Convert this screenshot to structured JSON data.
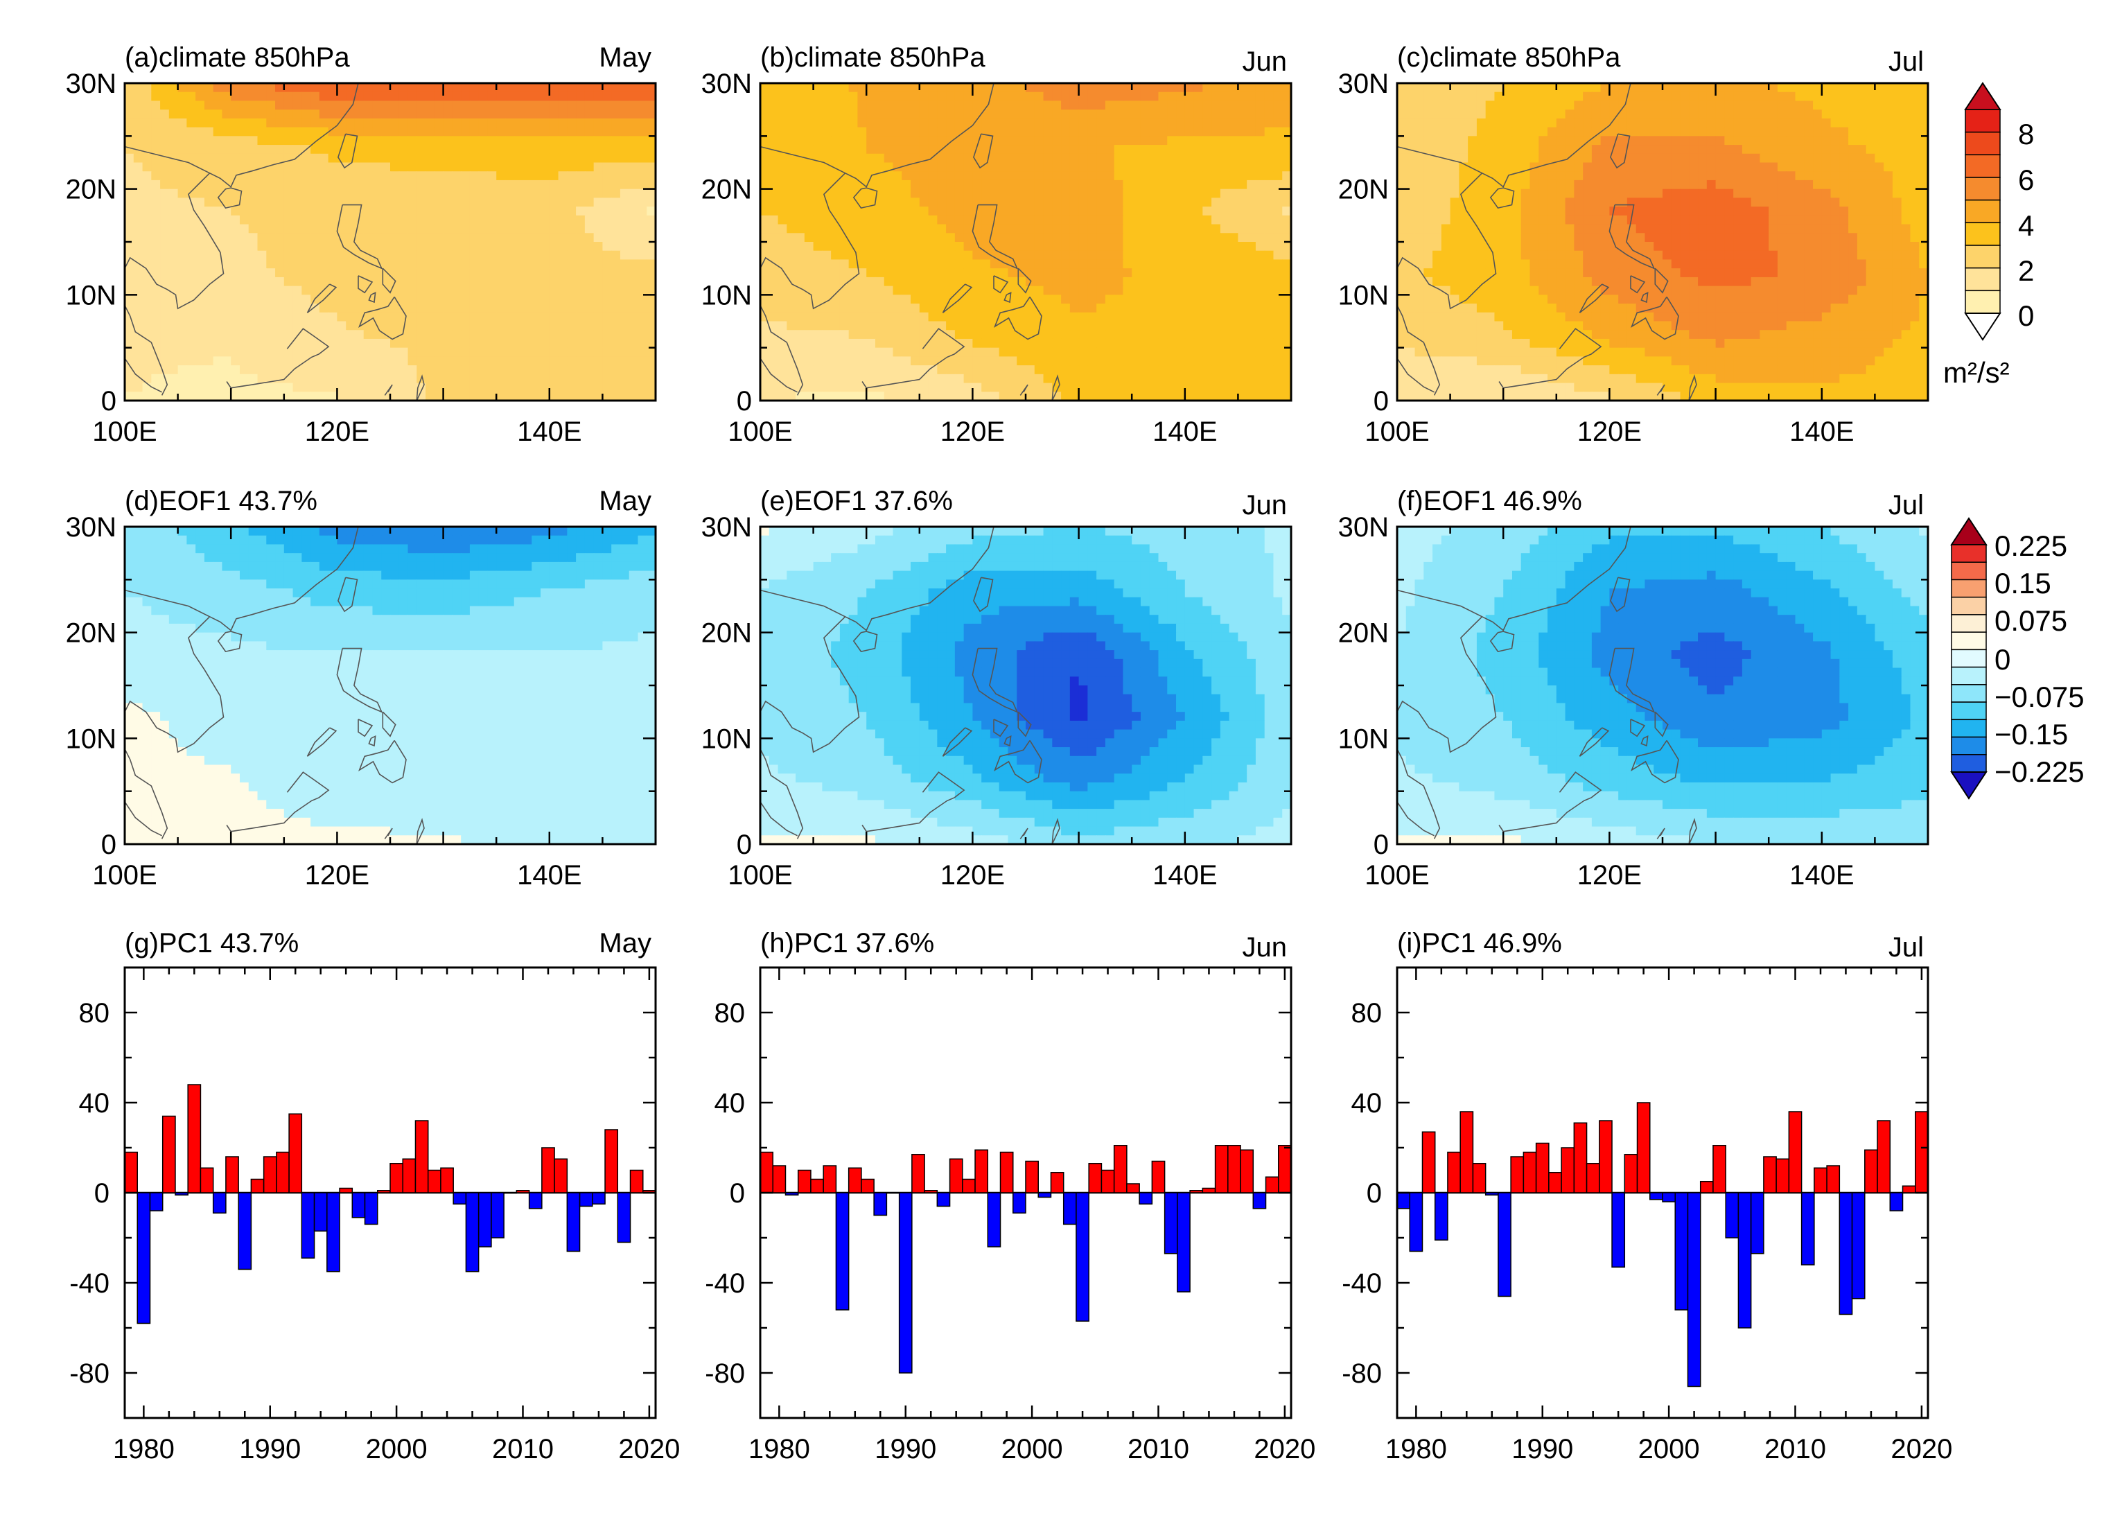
{
  "figure": {
    "xtick_labels_map": [
      "100E",
      "120E",
      "140E"
    ],
    "ytick_labels_map": [
      "0",
      "10N",
      "20N",
      "30N"
    ],
    "xtick_labels_pc": [
      "1980",
      "1990",
      "2000",
      "2010",
      "2020"
    ],
    "ytick_labels_pc": [
      "-80",
      "-40",
      "0",
      "40",
      "80"
    ]
  },
  "colorbars": {
    "climate": {
      "labels": [
        "0",
        "2",
        "4",
        "6",
        "8"
      ],
      "unit": "m²/s²",
      "colors": [
        "#fff5cc",
        "#fff0b0",
        "#ffe39a",
        "#fdd36a",
        "#fcc21c",
        "#f9a825",
        "#f58b2e",
        "#f36a25",
        "#ed4a1c",
        "#e52217",
        "#c80f1e"
      ]
    },
    "eof": {
      "labels": [
        "0.225",
        "0.15",
        "0.075",
        "0",
        "−0.075",
        "−0.15",
        "−0.225"
      ],
      "colors": [
        "#c8001e",
        "#e8302a",
        "#f46a4a",
        "#f8a070",
        "#fbd1a6",
        "#fdf0d6",
        "#fffbe6",
        "#e2fbff",
        "#b8f2fc",
        "#8ee6fa",
        "#4fd3f5",
        "#21b4f0",
        "#1e8ce8",
        "#1f5ee0",
        "#1b2ed6"
      ]
    }
  },
  "panels": [
    {
      "label": "(a)climate  850hPa",
      "month": "May"
    },
    {
      "label": "(b)climate  850hPa",
      "month": "Jun"
    },
    {
      "label": "(c)climate  850hPa",
      "month": "Jul"
    },
    {
      "label": "(d)EOF1  43.7%",
      "month": "May"
    },
    {
      "label": "(e)EOF1  37.6%",
      "month": "Jun"
    },
    {
      "label": "(f)EOF1  46.9%",
      "month": "Jul"
    },
    {
      "label": "(g)PC1  43.7%",
      "month": "May"
    },
    {
      "label": "(h)PC1  37.6%",
      "month": "Jun"
    },
    {
      "label": "(i)PC1  46.9%",
      "month": "Jul"
    }
  ],
  "chart_data": [
    {
      "type": "heatmap",
      "title": "(a)climate  850hPa",
      "month": "May",
      "xlim": [
        100,
        150
      ],
      "ylim": [
        0,
        30
      ],
      "levels": [
        0,
        1,
        2,
        3,
        4,
        5,
        6,
        7,
        8
      ],
      "grid_x": [
        100,
        110,
        120,
        130,
        140,
        150
      ],
      "grid_y": [
        0,
        6,
        12,
        18,
        24,
        30
      ],
      "values": [
        [
          1.0,
          0.8,
          0.9,
          2.2,
          2.2,
          2.2
        ],
        [
          1.1,
          1.1,
          1.9,
          2.2,
          2.2,
          2.3
        ],
        [
          1.4,
          1.8,
          2.3,
          2.3,
          2.3,
          2.2
        ],
        [
          1.8,
          2.0,
          2.3,
          2.4,
          2.4,
          0.9
        ],
        [
          2.0,
          2.5,
          3.2,
          3.4,
          3.6,
          3.6
        ],
        [
          2.4,
          5.6,
          7.0,
          7.2,
          7.1,
          7.0
        ]
      ]
    },
    {
      "type": "heatmap",
      "title": "(b)climate  850hPa",
      "month": "Jun",
      "xlim": [
        100,
        150
      ],
      "ylim": [
        0,
        30
      ],
      "levels": [
        0,
        1,
        2,
        3,
        4,
        5,
        6,
        7,
        8
      ],
      "grid_x": [
        100,
        110,
        120,
        130,
        140,
        150
      ],
      "grid_y": [
        0,
        6,
        12,
        18,
        24,
        30
      ],
      "values": [
        [
          1.0,
          0.8,
          1.5,
          3.2,
          3.6,
          3.6
        ],
        [
          1.8,
          2.0,
          3.2,
          3.9,
          3.8,
          3.6
        ],
        [
          2.5,
          3.0,
          3.9,
          4.2,
          3.8,
          3.3
        ],
        [
          3.0,
          3.6,
          4.3,
          4.5,
          3.2,
          1.9
        ],
        [
          3.4,
          4.0,
          4.5,
          4.1,
          3.8,
          3.8
        ],
        [
          3.4,
          4.1,
          4.5,
          5.6,
          5.2,
          4.5
        ]
      ]
    },
    {
      "type": "heatmap",
      "title": "(c)climate  850hPa",
      "month": "Jul",
      "xlim": [
        100,
        150
      ],
      "ylim": [
        0,
        30
      ],
      "levels": [
        0,
        1,
        2,
        3,
        4,
        5,
        6,
        7,
        8
      ],
      "grid_x": [
        100,
        110,
        120,
        130,
        140,
        150
      ],
      "grid_y": [
        0,
        6,
        12,
        18,
        24,
        30
      ],
      "values": [
        [
          1.0,
          0.9,
          1.8,
          3.4,
          3.8,
          3.6
        ],
        [
          2.2,
          2.8,
          4.2,
          5.2,
          4.6,
          3.8
        ],
        [
          2.8,
          3.6,
          5.4,
          6.3,
          5.8,
          4.0
        ],
        [
          2.4,
          3.6,
          6.0,
          6.6,
          5.4,
          3.5
        ],
        [
          2.2,
          3.4,
          5.2,
          5.2,
          4.2,
          3.6
        ],
        [
          2.0,
          3.0,
          4.0,
          4.2,
          3.8,
          3.6
        ]
      ]
    },
    {
      "type": "heatmap",
      "title": "(d)EOF1  43.7%",
      "month": "May",
      "xlim": [
        100,
        150
      ],
      "ylim": [
        0,
        30
      ],
      "levels": [
        -0.225,
        -0.15,
        -0.075,
        0,
        0.075,
        0.15,
        0.225
      ],
      "grid_x": [
        100,
        110,
        120,
        130,
        140,
        150
      ],
      "grid_y": [
        0,
        6,
        12,
        18,
        24,
        30
      ],
      "values": [
        [
          0.005,
          0.005,
          0.004,
          0.003,
          -0.01,
          -0.02
        ],
        [
          0.004,
          0.002,
          -0.012,
          -0.015,
          -0.015,
          -0.015
        ],
        [
          0.006,
          -0.01,
          -0.015,
          -0.02,
          -0.02,
          -0.02
        ],
        [
          -0.015,
          -0.02,
          -0.025,
          -0.025,
          -0.025,
          -0.02
        ],
        [
          -0.025,
          -0.04,
          -0.06,
          -0.065,
          -0.05,
          -0.035
        ],
        [
          -0.035,
          -0.07,
          -0.11,
          -0.125,
          -0.11,
          -0.08
        ]
      ]
    },
    {
      "type": "heatmap",
      "title": "(e)EOF1  37.6%",
      "month": "Jun",
      "xlim": [
        100,
        150
      ],
      "ylim": [
        0,
        30
      ],
      "levels": [
        -0.225,
        -0.15,
        -0.075,
        0,
        0.075,
        0.15,
        0.225
      ],
      "grid_x": [
        100,
        110,
        120,
        130,
        140,
        150
      ],
      "grid_y": [
        0,
        6,
        12,
        18,
        24,
        30
      ],
      "values": [
        [
          0.004,
          0.005,
          -0.012,
          -0.04,
          -0.03,
          -0.015
        ],
        [
          -0.02,
          -0.035,
          -0.07,
          -0.11,
          -0.075,
          -0.03
        ],
        [
          -0.03,
          -0.05,
          -0.1,
          -0.155,
          -0.1,
          -0.035
        ],
        [
          -0.03,
          -0.06,
          -0.11,
          -0.15,
          -0.08,
          -0.03
        ],
        [
          -0.025,
          -0.05,
          -0.09,
          -0.09,
          -0.05,
          -0.02
        ],
        [
          0.004,
          -0.015,
          -0.04,
          -0.05,
          -0.04,
          -0.02
        ]
      ]
    },
    {
      "type": "heatmap",
      "title": "(f)EOF1  46.9%",
      "month": "Jul",
      "xlim": [
        100,
        150
      ],
      "ylim": [
        0,
        30
      ],
      "levels": [
        -0.225,
        -0.15,
        -0.075,
        0,
        0.075,
        0.15,
        0.225
      ],
      "grid_x": [
        100,
        110,
        120,
        130,
        140,
        150
      ],
      "grid_y": [
        0,
        6,
        12,
        18,
        24,
        30
      ],
      "values": [
        [
          0.004,
          0.005,
          -0.01,
          -0.025,
          -0.03,
          -0.025
        ],
        [
          -0.02,
          -0.035,
          -0.06,
          -0.08,
          -0.075,
          -0.06
        ],
        [
          -0.03,
          -0.05,
          -0.09,
          -0.12,
          -0.11,
          -0.07
        ],
        [
          -0.025,
          -0.06,
          -0.11,
          -0.135,
          -0.105,
          -0.06
        ],
        [
          -0.02,
          -0.05,
          -0.1,
          -0.11,
          -0.08,
          -0.04
        ],
        [
          -0.015,
          -0.035,
          -0.07,
          -0.07,
          -0.05,
          -0.02
        ]
      ]
    },
    {
      "type": "bar",
      "title": "(g)PC1  43.7%",
      "month": "May",
      "x": [
        1979,
        1980,
        1981,
        1982,
        1983,
        1984,
        1985,
        1986,
        1987,
        1988,
        1989,
        1990,
        1991,
        1992,
        1993,
        1994,
        1995,
        1996,
        1997,
        1998,
        1999,
        2000,
        2001,
        2002,
        2003,
        2004,
        2005,
        2006,
        2007,
        2008,
        2009,
        2010,
        2011,
        2012,
        2013,
        2014,
        2015,
        2016,
        2017,
        2018,
        2019,
        2020
      ],
      "values": [
        18,
        -58,
        -8,
        34,
        -1,
        48,
        11,
        -9,
        16,
        -34,
        6,
        16,
        18,
        35,
        -29,
        -17,
        -35,
        2,
        -11,
        -14,
        1,
        13,
        15,
        32,
        10,
        11,
        -5,
        -35,
        -24,
        -20,
        0,
        1,
        -7,
        20,
        15,
        -26,
        -6,
        -5,
        28,
        -22,
        10,
        1
      ],
      "xlim": [
        1978.5,
        2020.5
      ],
      "ylim": [
        -100,
        100
      ],
      "xlabel": "",
      "ylabel": ""
    },
    {
      "type": "bar",
      "title": "(h)PC1  37.6%",
      "month": "Jun",
      "x": [
        1979,
        1980,
        1981,
        1982,
        1983,
        1984,
        1985,
        1986,
        1987,
        1988,
        1989,
        1990,
        1991,
        1992,
        1993,
        1994,
        1995,
        1996,
        1997,
        1998,
        1999,
        2000,
        2001,
        2002,
        2003,
        2004,
        2005,
        2006,
        2007,
        2008,
        2009,
        2010,
        2011,
        2012,
        2013,
        2014,
        2015,
        2016,
        2017,
        2018,
        2019,
        2020
      ],
      "values": [
        18,
        12,
        -1,
        10,
        6,
        12,
        -52,
        11,
        6,
        -10,
        0,
        -80,
        17,
        1,
        -6,
        15,
        6,
        19,
        -24,
        18,
        -9,
        14,
        -2,
        9,
        -14,
        -57,
        13,
        10,
        21,
        4,
        -5,
        14,
        -27,
        -44,
        1,
        2,
        21,
        21,
        19,
        -7,
        7,
        21
      ],
      "xlim": [
        1978.5,
        2020.5
      ],
      "ylim": [
        -100,
        100
      ],
      "xlabel": "",
      "ylabel": ""
    },
    {
      "type": "bar",
      "title": "(i)PC1  46.9%",
      "month": "Jul",
      "x": [
        1979,
        1980,
        1981,
        1982,
        1983,
        1984,
        1985,
        1986,
        1987,
        1988,
        1989,
        1990,
        1991,
        1992,
        1993,
        1994,
        1995,
        1996,
        1997,
        1998,
        1999,
        2000,
        2001,
        2002,
        2003,
        2004,
        2005,
        2006,
        2007,
        2008,
        2009,
        2010,
        2011,
        2012,
        2013,
        2014,
        2015,
        2016,
        2017,
        2018,
        2019,
        2020
      ],
      "values": [
        -7,
        -26,
        27,
        -21,
        18,
        36,
        13,
        -1,
        -46,
        16,
        18,
        22,
        9,
        20,
        31,
        13,
        32,
        -33,
        17,
        40,
        -3,
        -4,
        -52,
        -86,
        5,
        21,
        -20,
        -60,
        -27,
        16,
        15,
        36,
        -32,
        11,
        12,
        -54,
        -47,
        19,
        32,
        -8,
        3,
        36
      ],
      "xlim": [
        1978.5,
        2020.5
      ],
      "ylim": [
        -100,
        100
      ],
      "xlabel": "",
      "ylabel": ""
    }
  ]
}
